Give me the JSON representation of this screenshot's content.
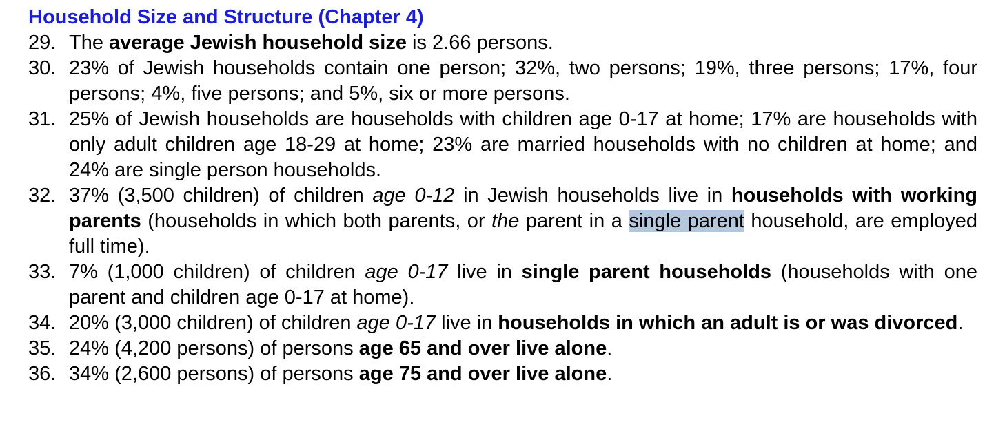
{
  "section": {
    "heading": "Household Size and Structure (Chapter 4)",
    "heading_color": "#1a1ae6"
  },
  "selection_color": "#b3c8dc",
  "findings": [
    {
      "number": "29.",
      "segments": [
        {
          "text": "The ",
          "style": "normal"
        },
        {
          "text": "average Jewish household size",
          "style": "bold"
        },
        {
          "text": " is 2.66 persons.",
          "style": "normal"
        }
      ]
    },
    {
      "number": "30.",
      "segments": [
        {
          "text": "23% of Jewish households contain one person; 32%, two persons; 19%, three persons; 17%, four persons; 4%, five persons; and 5%, six or more persons.",
          "style": "normal"
        }
      ]
    },
    {
      "number": "31.",
      "segments": [
        {
          "text": "25% of Jewish households are households with children age 0-17 at home; 17% are households with only adult children age 18-29 at home; 23% are married households with no children at home; and 24% are single person households.",
          "style": "normal"
        }
      ]
    },
    {
      "number": "32.",
      "segments": [
        {
          "text": "37% (3,500 children) of children ",
          "style": "normal"
        },
        {
          "text": "age 0-12",
          "style": "italic"
        },
        {
          "text": " in Jewish households live in ",
          "style": "normal"
        },
        {
          "text": "households with working parents",
          "style": "bold"
        },
        {
          "text": " (households in which both parents, or ",
          "style": "normal"
        },
        {
          "text": "the",
          "style": "italic"
        },
        {
          "text": " parent in a ",
          "style": "normal"
        },
        {
          "text": "single parent",
          "style": "selected"
        },
        {
          "text": " household, are employed full time).",
          "style": "normal"
        }
      ]
    },
    {
      "number": "33.",
      "segments": [
        {
          "text": "7% (1,000 children) of children ",
          "style": "normal"
        },
        {
          "text": "age 0-17",
          "style": "italic"
        },
        {
          "text": " live in ",
          "style": "normal"
        },
        {
          "text": "single parent households",
          "style": "bold"
        },
        {
          "text": " (households with one parent and children age 0-17 at home).",
          "style": "normal"
        }
      ]
    },
    {
      "number": "34.",
      "segments": [
        {
          "text": "20% (3,000 children) of children ",
          "style": "normal"
        },
        {
          "text": "age 0-17",
          "style": "italic"
        },
        {
          "text": " live in ",
          "style": "normal"
        },
        {
          "text": "households in which an adult is or was divorced",
          "style": "bold"
        },
        {
          "text": ".",
          "style": "normal"
        }
      ]
    },
    {
      "number": "35.",
      "segments": [
        {
          "text": "24% (4,200 persons) of persons ",
          "style": "normal"
        },
        {
          "text": "age 65 and over live alone",
          "style": "bold"
        },
        {
          "text": ".",
          "style": "normal"
        }
      ]
    },
    {
      "number": "36.",
      "segments": [
        {
          "text": "34% (2,600 persons) of persons ",
          "style": "normal"
        },
        {
          "text": "age 75 and over live alone",
          "style": "bold"
        },
        {
          "text": ".",
          "style": "normal"
        }
      ]
    }
  ]
}
